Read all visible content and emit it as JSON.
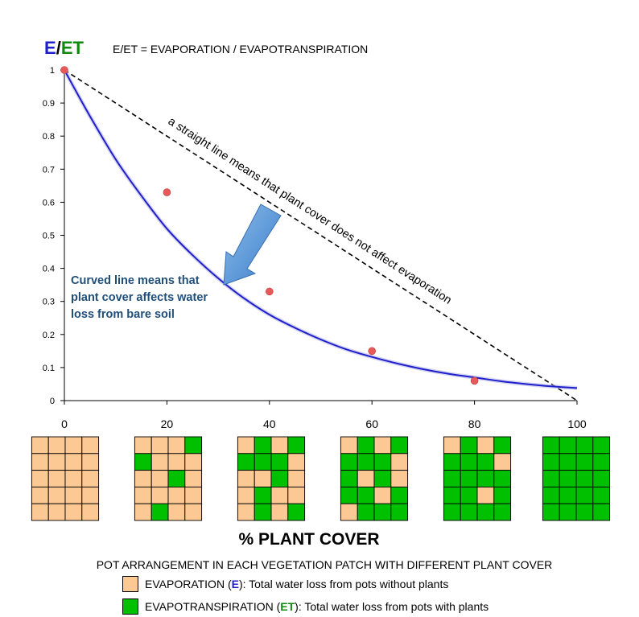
{
  "header": {
    "ylabel_E": "E",
    "ylabel_slash": "/",
    "ylabel_ET": "ET",
    "definition": "E/ET = EVAPORATION / EVAPOTRANSPIRATION"
  },
  "annotations": {
    "straight_line": "a straight line means that plant cover does not affect evaporation",
    "curved_line": [
      "Curved line means that",
      "plant cover affects water",
      "loss from bare soil"
    ]
  },
  "xlabel": "% PLANT COVER",
  "subtitle": "POT ARRANGEMENT IN EACH VEGETATION PATCH WITH DIFFERENT PLANT COVER",
  "legend": {
    "evap": {
      "pre": "EVAPORATION (",
      "sym": "E",
      "post": "): Total water loss from pots without plants"
    },
    "et": {
      "pre": "EVAPOTRANSPIRATION (",
      "sym": "ET",
      "post": "): Total water loss from pots with plants"
    }
  },
  "colors": {
    "soil": "#FCC995",
    "plant": "#00C000",
    "curve": "#1F1FCC",
    "point": "#E85A5A",
    "E_text": "#1F1FCC",
    "ET_text": "#0E8A0E",
    "annotation_blue": "#1F4E79",
    "arrow": "#5B9BD5"
  },
  "chart_data": {
    "type": "scatter",
    "xlim": [
      0,
      100
    ],
    "ylim": [
      0,
      1
    ],
    "x_ticks": [
      0,
      20,
      40,
      60,
      80,
      100
    ],
    "y_ticks": [
      0,
      0.1,
      0.2,
      0.3,
      0.4,
      0.5,
      0.6,
      0.7,
      0.8,
      0.9,
      1
    ],
    "y_tick_labels": [
      "0",
      "0.1",
      "0.2",
      "0.3",
      "0.4",
      "0.5",
      "0.6",
      "0.7",
      "0.8",
      "0.9",
      "1"
    ],
    "points": {
      "x": [
        0,
        20,
        40,
        60,
        80
      ],
      "y": [
        1.0,
        0.63,
        0.33,
        0.15,
        0.06
      ]
    },
    "curve": {
      "x": [
        0,
        5,
        10,
        15,
        20,
        25,
        30,
        35,
        40,
        45,
        50,
        55,
        60,
        65,
        70,
        75,
        80,
        85,
        90,
        95,
        100
      ],
      "y": [
        1.0,
        0.86,
        0.73,
        0.62,
        0.52,
        0.44,
        0.37,
        0.31,
        0.26,
        0.22,
        0.185,
        0.155,
        0.132,
        0.112,
        0.095,
        0.081,
        0.07,
        0.059,
        0.05,
        0.043,
        0.038
      ]
    },
    "reference_line": {
      "x": [
        0,
        100
      ],
      "y": [
        1,
        0
      ]
    },
    "grid": false
  },
  "patches": [
    {
      "cover": 0,
      "grid": [
        "0000",
        "0000",
        "0000",
        "0000",
        "0000"
      ]
    },
    {
      "cover": 20,
      "grid": [
        "0001",
        "1000",
        "0010",
        "0000",
        "0100"
      ]
    },
    {
      "cover": 40,
      "grid": [
        "0101",
        "1110",
        "0010",
        "0100",
        "0101"
      ]
    },
    {
      "cover": 60,
      "grid": [
        "0101",
        "1110",
        "1010",
        "1101",
        "0111"
      ]
    },
    {
      "cover": 80,
      "grid": [
        "0101",
        "1110",
        "1111",
        "1101",
        "1111"
      ]
    },
    {
      "cover": 100,
      "grid": [
        "1111",
        "1111",
        "1111",
        "1111",
        "1111"
      ]
    }
  ]
}
